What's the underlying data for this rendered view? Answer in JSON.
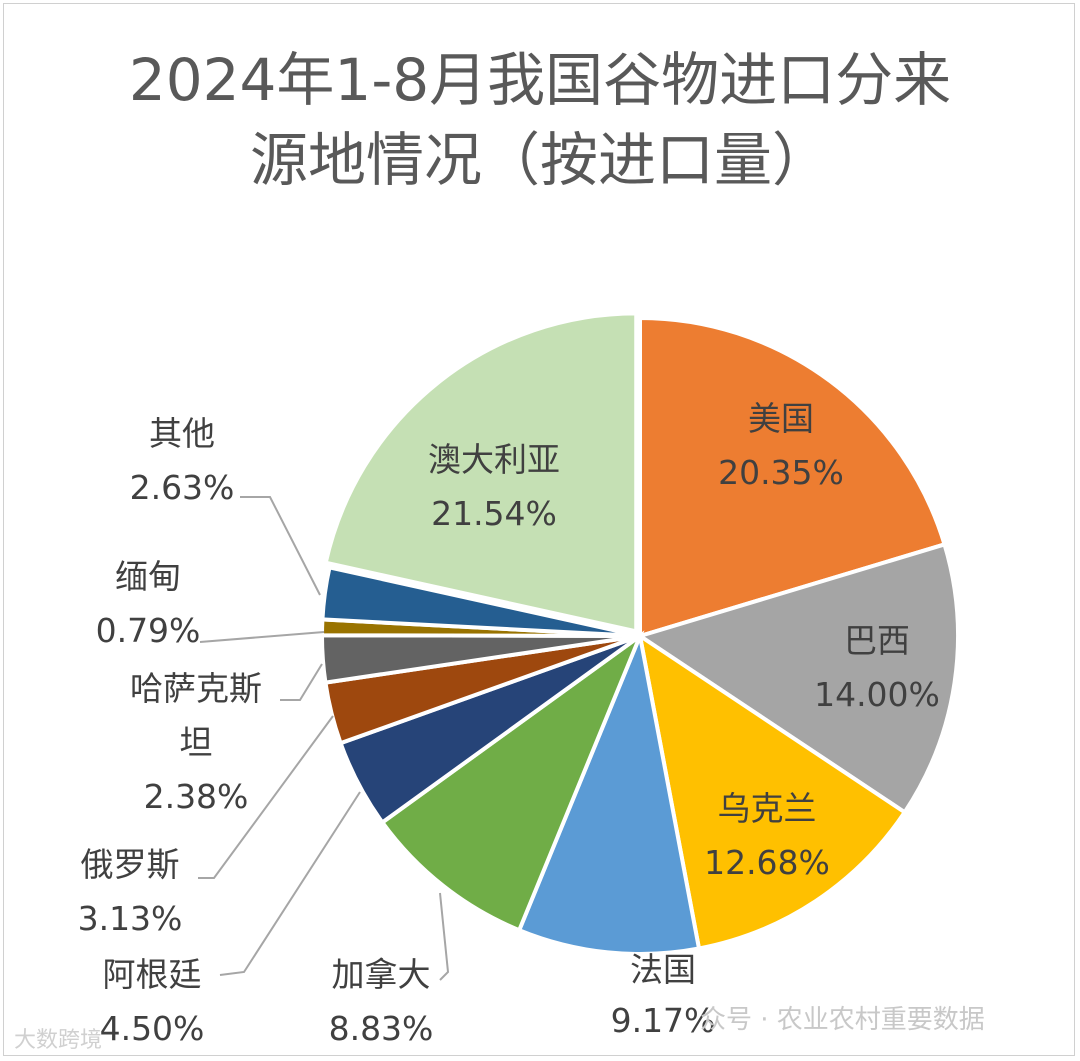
{
  "chart_data": {
    "type": "pie",
    "title_lines": [
      "2024年1-8月我国谷物进口分来",
      "源地情况（按进口量）"
    ],
    "slices": [
      {
        "name": "美国",
        "value": 20.35,
        "label": "20.35%",
        "color": "#ED7D31"
      },
      {
        "name": "巴西",
        "value": 14.0,
        "label": "14.00%",
        "color": "#A5A5A5"
      },
      {
        "name": "乌克兰",
        "value": 12.68,
        "label": "12.68%",
        "color": "#FFC000"
      },
      {
        "name": "法国",
        "value": 9.17,
        "label": "9.17%",
        "color": "#5B9BD5"
      },
      {
        "name": "加拿大",
        "value": 8.83,
        "label": "8.83%",
        "color": "#70AD47"
      },
      {
        "name": "阿根廷",
        "value": 4.5,
        "label": "4.50%",
        "color": "#264478"
      },
      {
        "name": "俄罗斯",
        "value": 3.13,
        "label": "3.13%",
        "color": "#9E480E"
      },
      {
        "name": "哈萨克斯坦",
        "value": 2.38,
        "label": "2.38%",
        "color": "#636363"
      },
      {
        "name": "缅甸",
        "value": 0.79,
        "label": "0.79%",
        "color": "#997300"
      },
      {
        "name": "其他",
        "value": 2.63,
        "label": "2.63%",
        "color": "#255E91"
      },
      {
        "name": "澳大利亚",
        "value": 21.54,
        "label": "21.54%",
        "color": "#C5E0B4"
      }
    ]
  },
  "watermark": {
    "right": "众号 · 农业农村重要数据",
    "left": "大数跨境"
  }
}
